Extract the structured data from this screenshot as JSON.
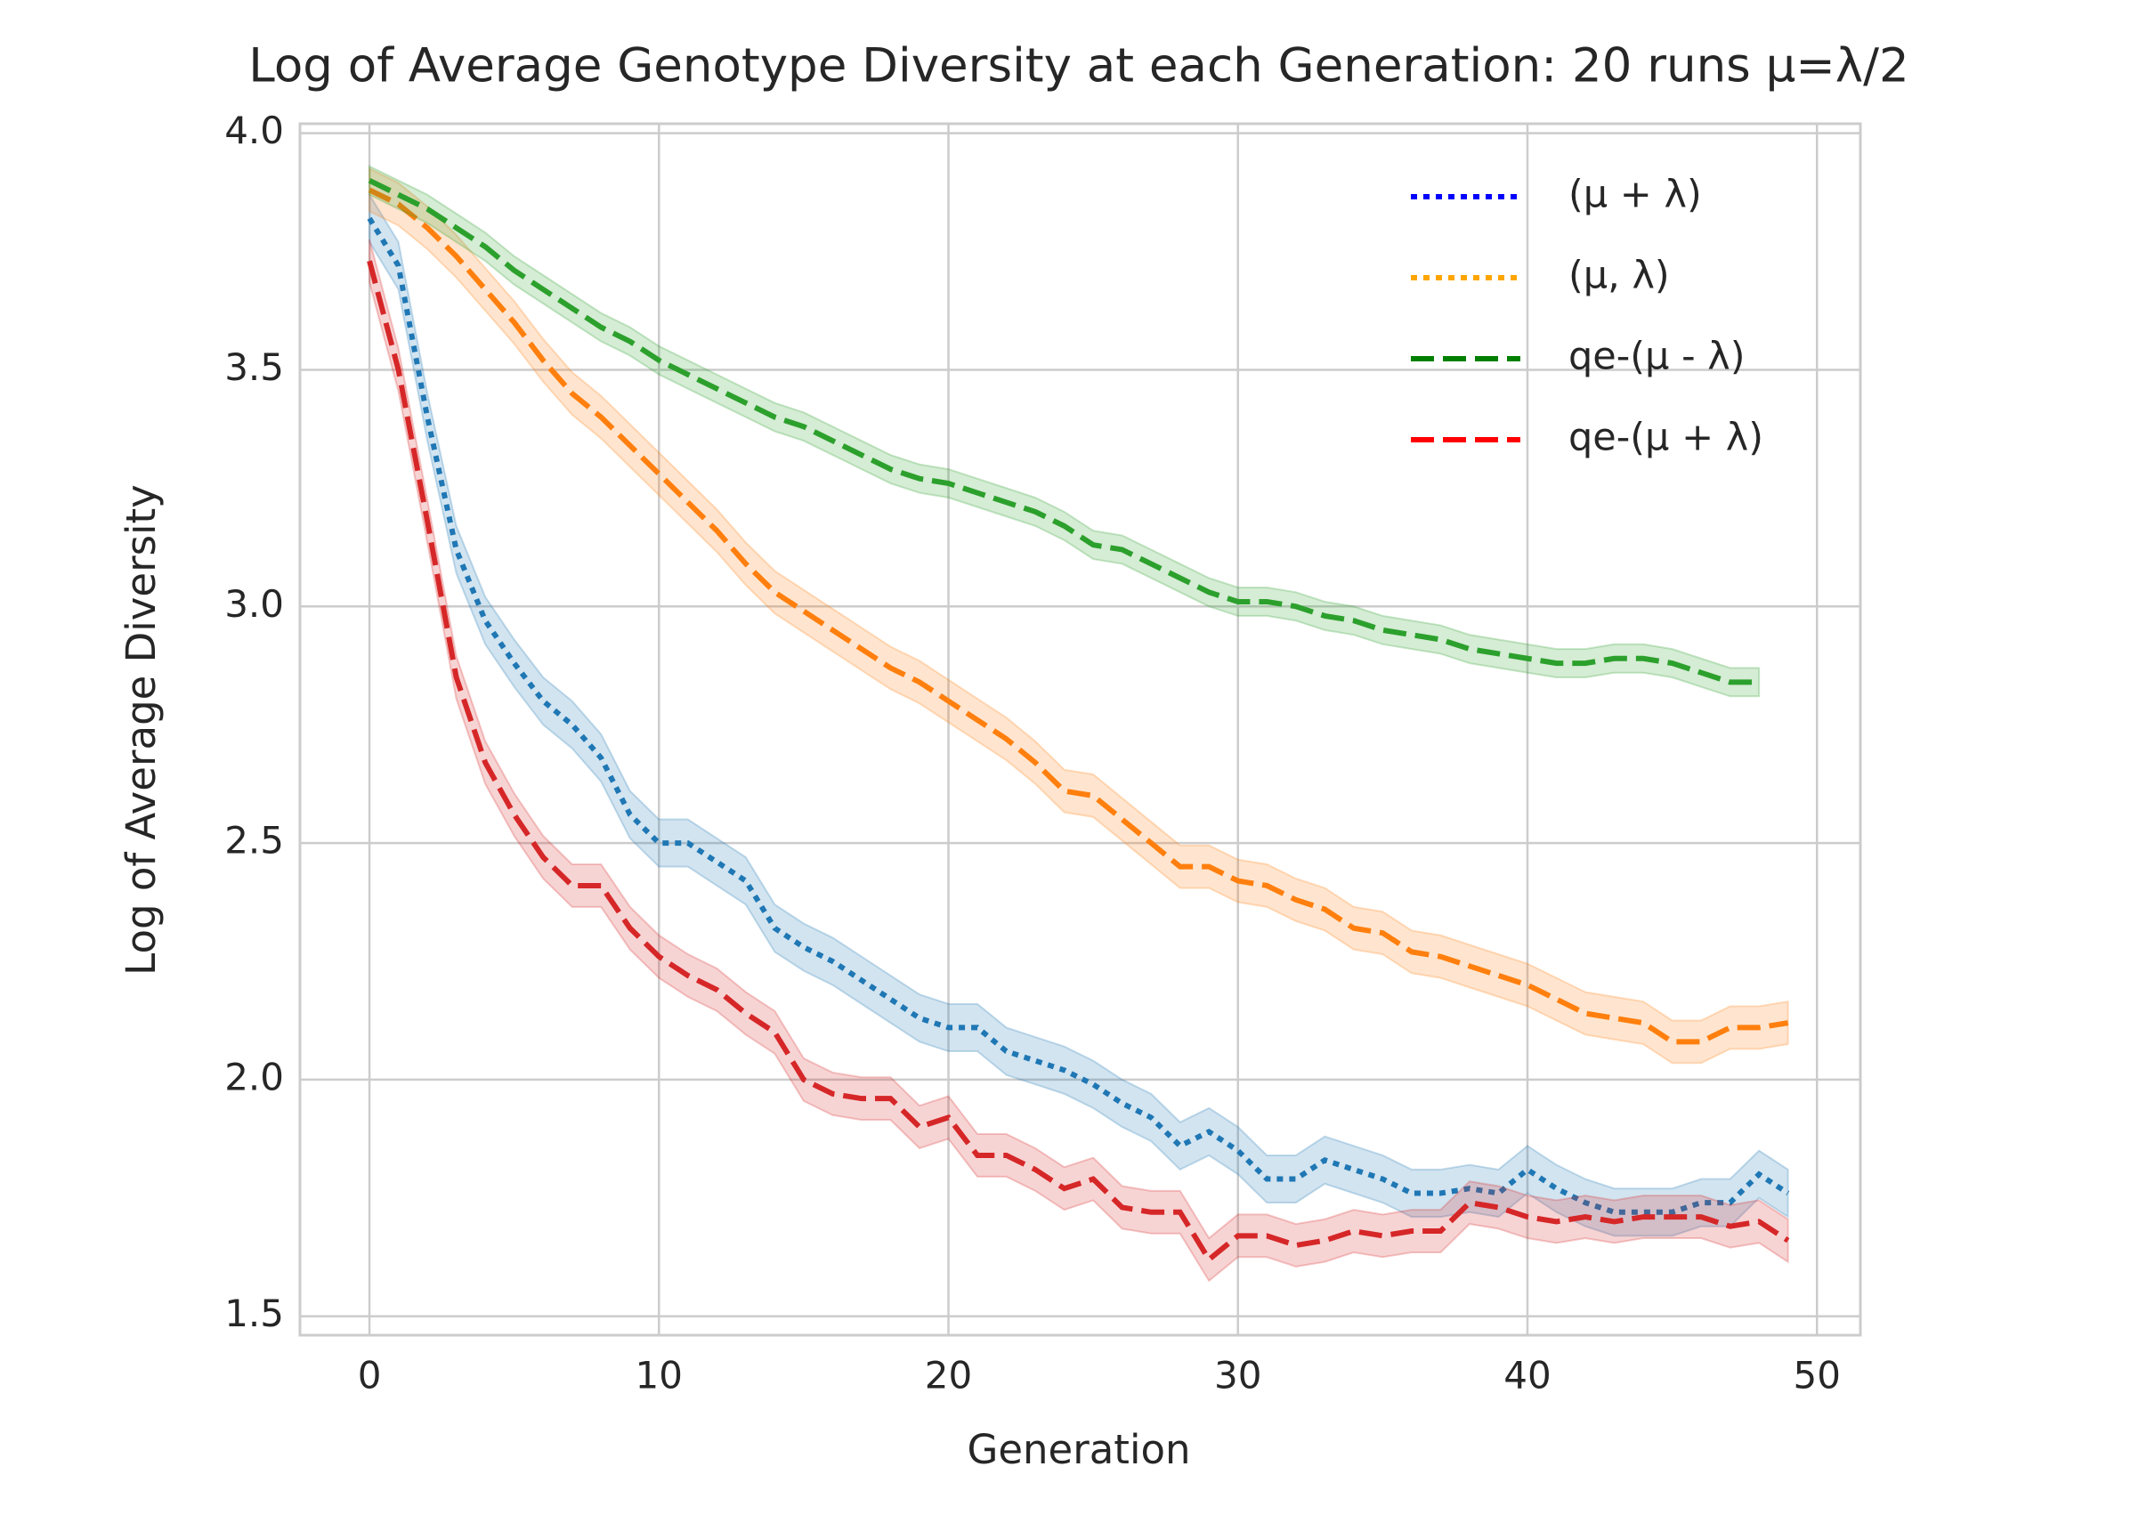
{
  "chart_data": {
    "type": "line",
    "title": "Log of Average Genotype Diversity at each Generation: 20 runs μ=λ/2",
    "xlabel": "Generation",
    "ylabel": "Log of Average Diversity",
    "x": [
      0,
      1,
      2,
      3,
      4,
      5,
      6,
      7,
      8,
      9,
      10,
      11,
      12,
      13,
      14,
      15,
      16,
      17,
      18,
      19,
      20,
      21,
      22,
      23,
      24,
      25,
      26,
      27,
      28,
      29,
      30,
      31,
      32,
      33,
      34,
      35,
      36,
      37,
      38,
      39,
      40,
      41,
      42,
      43,
      44,
      45,
      46,
      47,
      48,
      49
    ],
    "xlim": [
      -2.4,
      51.5
    ],
    "xticks": [
      0,
      10,
      20,
      30,
      40,
      50
    ],
    "ylim": [
      1.46,
      4.02
    ],
    "yticks": [
      1.5,
      {
        "value": 2,
        "label": "2.0"
      },
      2.5,
      {
        "value": 3,
        "label": "3.0"
      },
      3.5,
      {
        "value": 4,
        "label": "4.0"
      }
    ],
    "grid": true,
    "legend": "upper right",
    "series": [
      {
        "name": "(μ + λ)",
        "color": "#1f77b4",
        "legend_color": "#0000ff",
        "linestyle": "dotted",
        "legend_linestyle": "dotted",
        "ci": 0.05,
        "values": [
          3.82,
          3.72,
          3.4,
          3.12,
          2.97,
          2.88,
          2.8,
          2.75,
          2.68,
          2.56,
          2.5,
          2.5,
          2.46,
          2.42,
          2.32,
          2.28,
          2.25,
          2.21,
          2.17,
          2.13,
          2.11,
          2.11,
          2.06,
          2.04,
          2.02,
          1.99,
          1.95,
          1.92,
          1.86,
          1.89,
          1.85,
          1.79,
          1.79,
          1.83,
          1.81,
          1.79,
          1.76,
          1.76,
          1.77,
          1.76,
          1.81,
          1.77,
          1.74,
          1.72,
          1.72,
          1.72,
          1.74,
          1.74,
          1.8,
          1.76
        ]
      },
      {
        "name": "(μ, λ)",
        "color": "#ff7f0e",
        "legend_color": "#ffa500",
        "linestyle": "dashed",
        "legend_linestyle": "dotted",
        "ci": 0.045,
        "values": [
          3.88,
          3.85,
          3.8,
          3.74,
          3.67,
          3.6,
          3.52,
          3.45,
          3.4,
          3.34,
          3.28,
          3.22,
          3.16,
          3.09,
          3.03,
          2.99,
          2.95,
          2.91,
          2.87,
          2.84,
          2.8,
          2.76,
          2.72,
          2.67,
          2.61,
          2.6,
          2.55,
          2.5,
          2.45,
          2.45,
          2.42,
          2.41,
          2.38,
          2.36,
          2.32,
          2.31,
          2.27,
          2.26,
          2.24,
          2.22,
          2.2,
          2.17,
          2.14,
          2.13,
          2.12,
          2.08,
          2.08,
          2.11,
          2.11,
          2.12
        ]
      },
      {
        "name": "qe-(μ - λ)",
        "color": "#2ca02c",
        "legend_color": "#008000",
        "linestyle": "dashed",
        "legend_linestyle": "dashed",
        "ci": 0.03,
        "values": [
          3.9,
          3.87,
          3.84,
          3.8,
          3.76,
          3.71,
          3.67,
          3.63,
          3.59,
          3.56,
          3.52,
          3.49,
          3.46,
          3.43,
          3.4,
          3.38,
          3.35,
          3.32,
          3.29,
          3.27,
          3.26,
          3.24,
          3.22,
          3.2,
          3.17,
          3.13,
          3.12,
          3.09,
          3.06,
          3.03,
          3.01,
          3.01,
          3.0,
          2.98,
          2.97,
          2.95,
          2.94,
          2.93,
          2.91,
          2.9,
          2.89,
          2.88,
          2.88,
          2.89,
          2.89,
          2.88,
          2.86,
          2.84,
          2.84,
          null
        ]
      },
      {
        "name": "qe-(μ + λ)",
        "color": "#d62728",
        "legend_color": "#ff0000",
        "linestyle": "dashed",
        "legend_linestyle": "dashed",
        "ci": 0.045,
        "values": [
          3.73,
          3.5,
          3.18,
          2.85,
          2.67,
          2.56,
          2.47,
          2.41,
          2.41,
          2.32,
          2.26,
          2.22,
          2.19,
          2.14,
          2.1,
          2.0,
          1.97,
          1.96,
          1.96,
          1.9,
          1.92,
          1.84,
          1.84,
          1.81,
          1.77,
          1.79,
          1.73,
          1.72,
          1.72,
          1.62,
          1.67,
          1.67,
          1.65,
          1.66,
          1.68,
          1.67,
          1.68,
          1.68,
          1.74,
          1.73,
          1.71,
          1.7,
          1.71,
          1.7,
          1.71,
          1.71,
          1.71,
          1.69,
          1.7,
          1.66
        ]
      }
    ]
  }
}
